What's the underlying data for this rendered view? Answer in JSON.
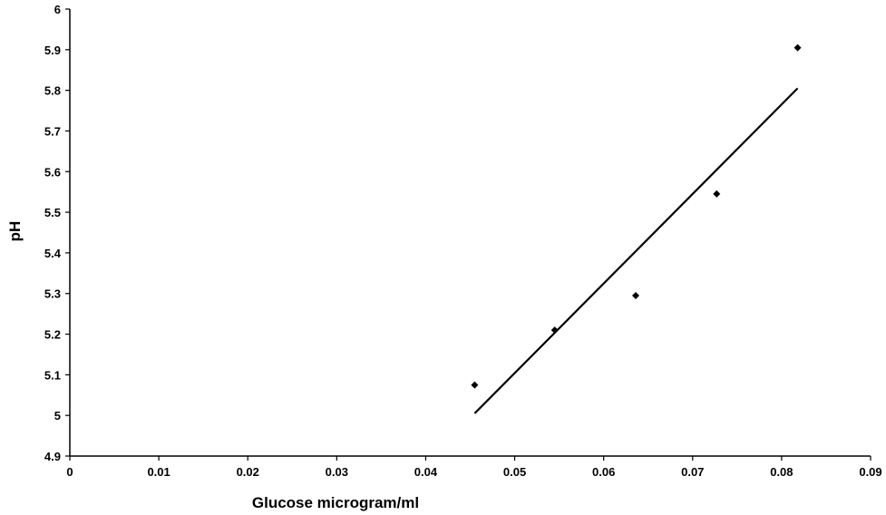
{
  "chart_data": {
    "type": "scatter",
    "xlabel": "Glucose microgram/ml",
    "ylabel": "pH",
    "xlim": [
      0,
      0.09
    ],
    "ylim": [
      4.9,
      6
    ],
    "x_ticks": [
      "0",
      "0.01",
      "0.02",
      "0.03",
      "0.04",
      "0.05",
      "0.06",
      "0.07",
      "0.08",
      "0.09"
    ],
    "y_ticks": [
      "4.9",
      "5",
      "5.1",
      "5.2",
      "5.3",
      "5.4",
      "5.5",
      "5.6",
      "5.7",
      "5.8",
      "5.9",
      "6"
    ],
    "grid": false,
    "series": [
      {
        "marker": "diamond",
        "points": [
          {
            "x": 0.0455,
            "y": 5.075
          },
          {
            "x": 0.0545,
            "y": 5.21
          },
          {
            "x": 0.0636,
            "y": 5.295
          },
          {
            "x": 0.0727,
            "y": 5.545
          },
          {
            "x": 0.0818,
            "y": 5.905
          }
        ]
      }
    ],
    "trendline": {
      "type": "linear",
      "x_range": [
        0.0455,
        0.0818
      ],
      "y_range": [
        5.005,
        5.805
      ]
    }
  }
}
